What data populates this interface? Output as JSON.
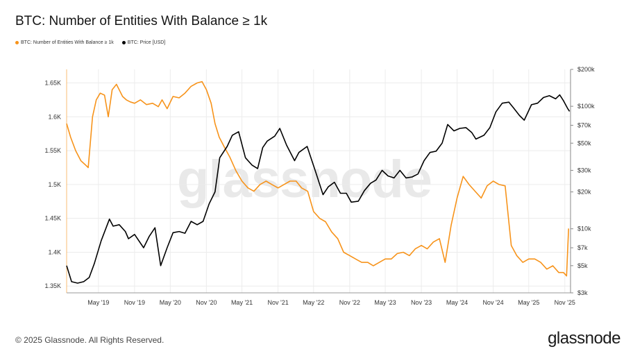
{
  "header": {
    "title": "BTC: Number of Entities With Balance ≥ 1k"
  },
  "legend": [
    {
      "label": "BTC: Number of Entities With Balance ≥ 1k",
      "color": "#F7931A"
    },
    {
      "label": "BTC: Price [USD]",
      "color": "#000000"
    }
  ],
  "watermark": "glassnode",
  "footer": {
    "copyright": "© 2025 Glassnode. All Rights Reserved.",
    "logo": "glassnode"
  },
  "chart_data": {
    "type": "line",
    "title": "BTC: Number of Entities With Balance ≥ 1k",
    "x_ticks": [
      "May '19",
      "Nov '19",
      "May '20",
      "Nov '20",
      "May '21",
      "Nov '21",
      "May '22",
      "Nov '22",
      "May '23",
      "Nov '23",
      "May '24",
      "Nov '24",
      "May '25",
      "Nov '25"
    ],
    "xlim": [
      "2018-11-20",
      "2025-11-30"
    ],
    "y_left": {
      "ticks": [
        "1.35K",
        "1.4K",
        "1.45K",
        "1.5K",
        "1.55K",
        "1.6K",
        "1.65K"
      ],
      "tick_values": [
        1350,
        1400,
        1450,
        1500,
        1550,
        1600,
        1650
      ],
      "range": [
        1340,
        1670
      ]
    },
    "y_right": {
      "scale": "log",
      "ticks": [
        "$3k",
        "$5k",
        "$7k",
        "$10k",
        "$20k",
        "$30k",
        "$50k",
        "$70k",
        "$100k",
        "$200k"
      ],
      "tick_values": [
        3000,
        5000,
        7000,
        10000,
        20000,
        30000,
        50000,
        70000,
        100000,
        200000
      ],
      "range": [
        3000,
        200000
      ]
    },
    "grid": true,
    "legend_position": "top-left",
    "series": [
      {
        "name": "BTC: Number of Entities With Balance ≥ 1k",
        "color": "#F7931A",
        "axis": "left",
        "x": [
          "2018-11-20",
          "2018-12-10",
          "2019-01-05",
          "2019-02-01",
          "2019-02-20",
          "2019-03-10",
          "2019-04-01",
          "2019-04-20",
          "2019-05-10",
          "2019-06-01",
          "2019-06-20",
          "2019-07-10",
          "2019-08-01",
          "2019-09-01",
          "2019-09-20",
          "2019-10-10",
          "2019-11-01",
          "2019-12-01",
          "2020-01-01",
          "2020-02-01",
          "2020-03-01",
          "2020-03-20",
          "2020-04-15",
          "2020-05-15",
          "2020-06-15",
          "2020-07-15",
          "2020-08-15",
          "2020-09-15",
          "2020-10-10",
          "2020-11-01",
          "2020-11-25",
          "2020-12-15",
          "2021-01-05",
          "2021-02-01",
          "2021-03-01",
          "2021-04-01",
          "2021-05-01",
          "2021-06-01",
          "2021-07-01",
          "2021-08-01",
          "2021-09-01",
          "2021-10-01",
          "2021-11-01",
          "2021-12-01",
          "2022-01-01",
          "2022-02-01",
          "2022-03-01",
          "2022-04-01",
          "2022-05-01",
          "2022-06-01",
          "2022-07-01",
          "2022-08-01",
          "2022-09-01",
          "2022-10-01",
          "2022-11-01",
          "2022-12-01",
          "2023-01-01",
          "2023-02-01",
          "2023-03-01",
          "2023-04-01",
          "2023-05-01",
          "2023-06-01",
          "2023-07-01",
          "2023-08-01",
          "2023-09-01",
          "2023-10-01",
          "2023-11-01",
          "2023-12-01",
          "2024-01-01",
          "2024-02-01",
          "2024-03-01",
          "2024-04-01",
          "2024-05-01",
          "2024-06-01",
          "2024-07-01",
          "2024-08-01",
          "2024-09-01",
          "2024-10-01",
          "2024-11-01",
          "2024-12-01",
          "2025-01-01",
          "2025-02-01",
          "2025-03-01",
          "2025-04-01",
          "2025-05-01",
          "2025-06-01",
          "2025-07-01",
          "2025-08-01",
          "2025-09-01",
          "2025-10-01",
          "2025-10-25",
          "2025-11-10",
          "2025-11-20"
        ],
        "values": [
          1590,
          1570,
          1550,
          1535,
          1530,
          1525,
          1600,
          1625,
          1635,
          1632,
          1600,
          1640,
          1648,
          1630,
          1625,
          1622,
          1620,
          1625,
          1618,
          1620,
          1615,
          1625,
          1612,
          1630,
          1628,
          1635,
          1645,
          1650,
          1652,
          1640,
          1620,
          1590,
          1570,
          1555,
          1540,
          1520,
          1505,
          1495,
          1490,
          1500,
          1505,
          1500,
          1495,
          1500,
          1505,
          1505,
          1495,
          1490,
          1460,
          1450,
          1445,
          1430,
          1420,
          1400,
          1395,
          1390,
          1385,
          1385,
          1380,
          1385,
          1390,
          1390,
          1398,
          1400,
          1395,
          1405,
          1410,
          1405,
          1415,
          1420,
          1385,
          1440,
          1480,
          1512,
          1500,
          1490,
          1480,
          1498,
          1505,
          1500,
          1498,
          1410,
          1395,
          1385,
          1390,
          1390,
          1385,
          1375,
          1380,
          1370,
          1370,
          1365,
          1435
        ]
      },
      {
        "name": "BTC: Price [USD]",
        "color": "#000000",
        "axis": "right",
        "x": [
          "2018-11-20",
          "2018-12-15",
          "2019-01-15",
          "2019-02-15",
          "2019-03-15",
          "2019-04-10",
          "2019-05-15",
          "2019-06-26",
          "2019-07-15",
          "2019-08-15",
          "2019-09-15",
          "2019-10-01",
          "2019-11-01",
          "2019-12-17",
          "2020-01-15",
          "2020-02-13",
          "2020-03-13",
          "2020-04-15",
          "2020-05-15",
          "2020-06-15",
          "2020-07-15",
          "2020-08-15",
          "2020-09-15",
          "2020-10-15",
          "2020-11-15",
          "2020-12-15",
          "2021-01-08",
          "2021-02-15",
          "2021-03-13",
          "2021-04-14",
          "2021-05-19",
          "2021-06-22",
          "2021-07-20",
          "2021-08-15",
          "2021-09-07",
          "2021-10-15",
          "2021-11-10",
          "2021-12-15",
          "2022-01-24",
          "2022-02-15",
          "2022-03-29",
          "2022-05-12",
          "2022-06-18",
          "2022-07-15",
          "2022-08-15",
          "2022-09-15",
          "2022-10-15",
          "2022-11-09",
          "2022-12-15",
          "2023-01-15",
          "2023-02-15",
          "2023-03-15",
          "2023-04-15",
          "2023-05-15",
          "2023-06-15",
          "2023-07-15",
          "2023-08-15",
          "2023-09-15",
          "2023-10-15",
          "2023-11-15",
          "2023-12-15",
          "2024-01-15",
          "2024-02-15",
          "2024-03-14",
          "2024-04-15",
          "2024-05-15",
          "2024-06-15",
          "2024-07-15",
          "2024-08-05",
          "2024-09-15",
          "2024-10-15",
          "2024-11-15",
          "2024-12-17",
          "2025-01-20",
          "2025-02-15",
          "2025-03-15",
          "2025-04-08",
          "2025-05-15",
          "2025-06-15",
          "2025-07-15",
          "2025-08-14",
          "2025-09-15",
          "2025-10-06",
          "2025-10-25",
          "2025-11-15",
          "2025-11-25"
        ],
        "values": [
          5000,
          3700,
          3600,
          3700,
          4000,
          5200,
          8000,
          12000,
          10500,
          10800,
          9500,
          8300,
          9000,
          7000,
          8700,
          10200,
          5000,
          7000,
          9300,
          9500,
          9200,
          11500,
          10800,
          11500,
          16000,
          20000,
          38000,
          47000,
          58000,
          62000,
          38000,
          33000,
          31000,
          46000,
          52000,
          57000,
          66000,
          48000,
          36000,
          42000,
          47000,
          29000,
          19000,
          22000,
          24000,
          19500,
          19500,
          16500,
          16800,
          20500,
          23500,
          25000,
          30000,
          27000,
          26000,
          30000,
          26000,
          26500,
          28000,
          36000,
          42000,
          43000,
          50000,
          71000,
          63000,
          66000,
          67000,
          61000,
          54000,
          58000,
          67000,
          90000,
          106000,
          108000,
          96000,
          84000,
          77000,
          103000,
          106000,
          118000,
          122000,
          115000,
          124000,
          111000,
          96000,
          91000
        ]
      }
    ]
  }
}
